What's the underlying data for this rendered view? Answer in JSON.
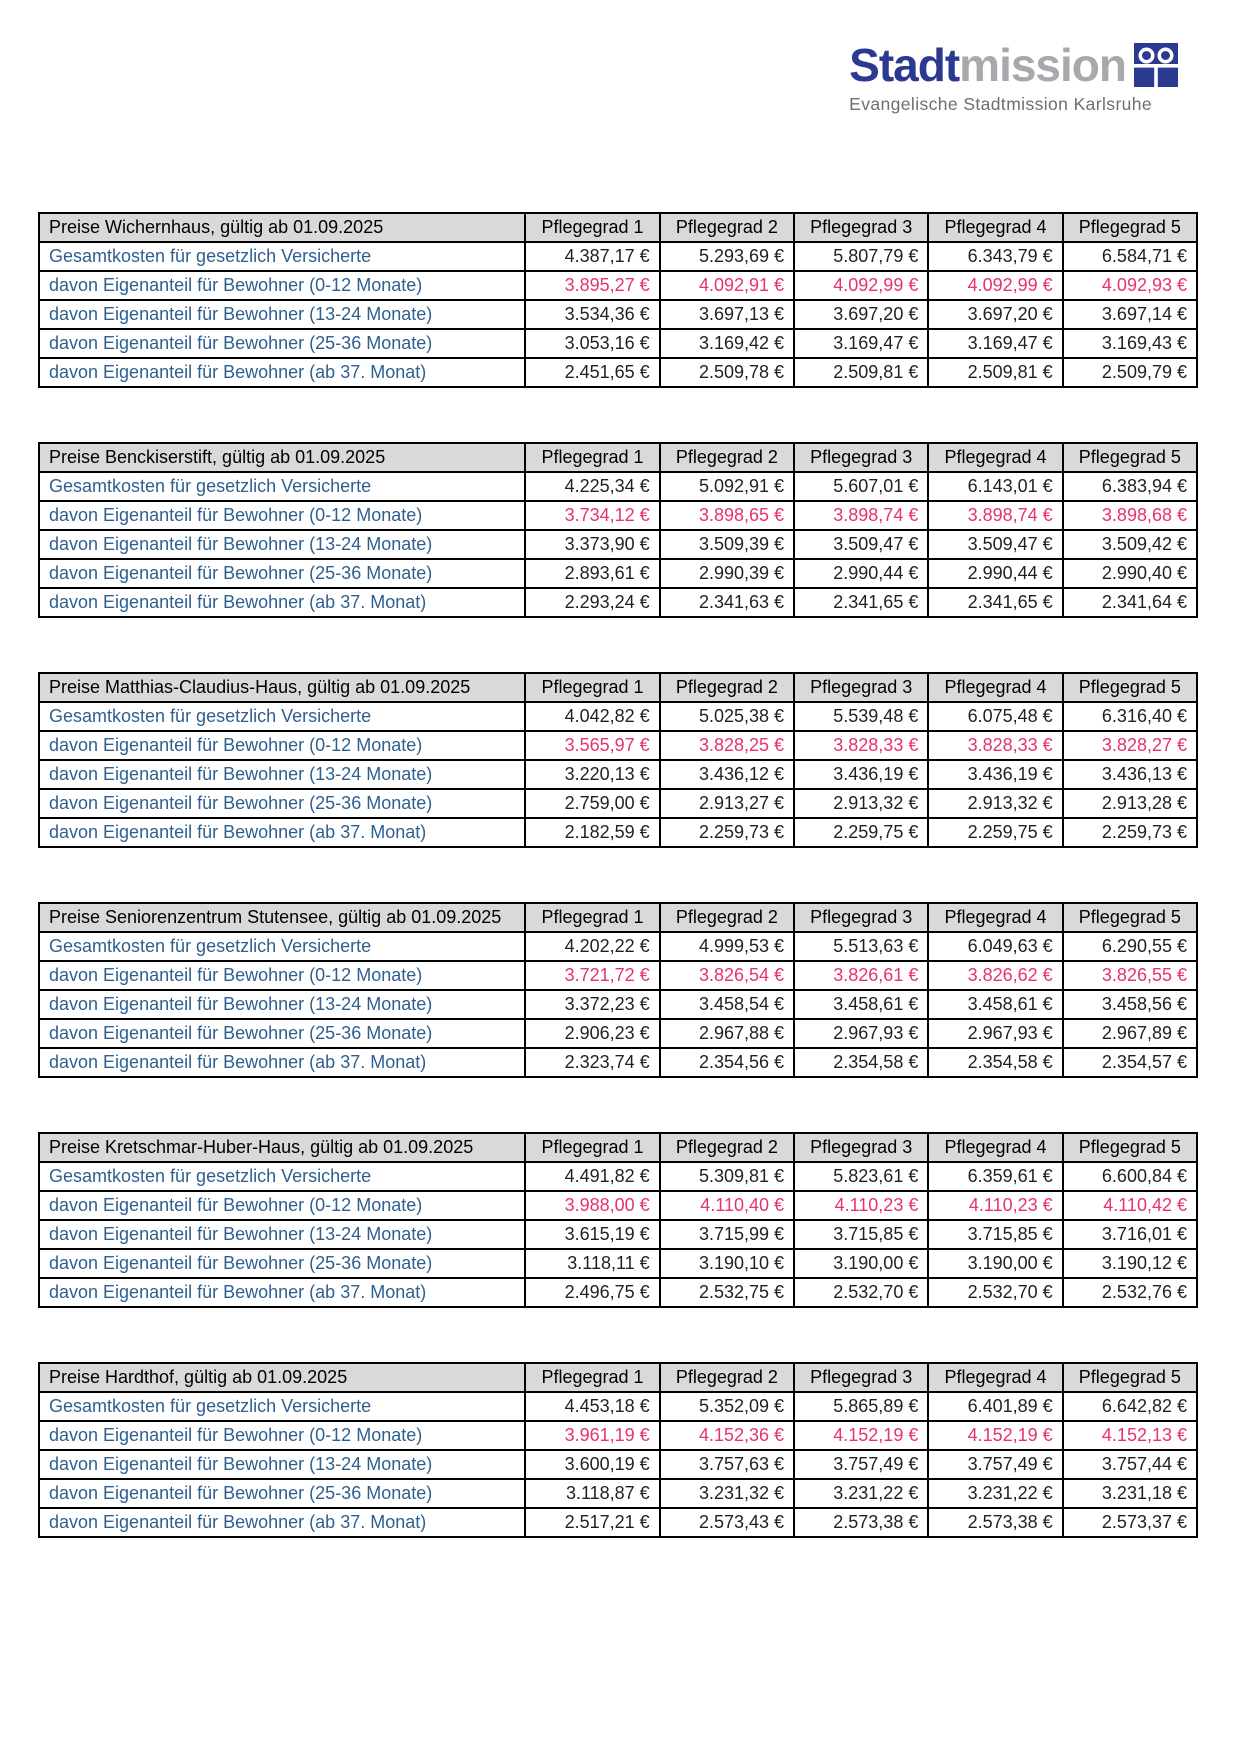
{
  "logo": {
    "brand_bold": "Stadt",
    "brand_light": "mission",
    "subtitle": "Evangelische Stadtmission Karlsruhe",
    "icon": "church-window-icon"
  },
  "colors": {
    "brand_blue": "#2b3990",
    "brand_gray": "#a7a9ac",
    "subtitle_gray": "#6d6e71",
    "header_bg": "#d9d9d9",
    "label_blue": "#2f5f8f",
    "value_black": "#231f20",
    "highlight_red": "#e63369",
    "border": "#000000"
  },
  "column_headers": [
    "Pflegegrad 1",
    "Pflegegrad 2",
    "Pflegegrad 3",
    "Pflegegrad 4",
    "Pflegegrad 5"
  ],
  "tables": [
    {
      "title": "Preise Wichernhaus, gültig ab 01.09.2025",
      "rows": [
        {
          "label": "Gesamtkosten für gesetzlich Versicherte",
          "highlight": false,
          "values": [
            "4.387,17 €",
            "5.293,69 €",
            "5.807,79 €",
            "6.343,79 €",
            "6.584,71 €"
          ]
        },
        {
          "label": "davon Eigenanteil für Bewohner (0-12 Monate)",
          "highlight": true,
          "values": [
            "3.895,27 €",
            "4.092,91 €",
            "4.092,99 €",
            "4.092,99 €",
            "4.092,93 €"
          ]
        },
        {
          "label": "davon Eigenanteil für Bewohner (13-24 Monate)",
          "highlight": false,
          "values": [
            "3.534,36 €",
            "3.697,13 €",
            "3.697,20 €",
            "3.697,20 €",
            "3.697,14 €"
          ]
        },
        {
          "label": "davon Eigenanteil für Bewohner (25-36 Monate)",
          "highlight": false,
          "values": [
            "3.053,16 €",
            "3.169,42 €",
            "3.169,47 €",
            "3.169,47 €",
            "3.169,43 €"
          ]
        },
        {
          "label": "davon Eigenanteil für Bewohner (ab 37. Monat)",
          "highlight": false,
          "values": [
            "2.451,65 €",
            "2.509,78 €",
            "2.509,81 €",
            "2.509,81 €",
            "2.509,79 €"
          ]
        }
      ]
    },
    {
      "title": "Preise Benckiserstift, gültig ab 01.09.2025",
      "rows": [
        {
          "label": "Gesamtkosten für gesetzlich Versicherte",
          "highlight": false,
          "values": [
            "4.225,34 €",
            "5.092,91 €",
            "5.607,01 €",
            "6.143,01 €",
            "6.383,94 €"
          ]
        },
        {
          "label": "davon Eigenanteil für Bewohner (0-12 Monate)",
          "highlight": true,
          "values": [
            "3.734,12 €",
            "3.898,65 €",
            "3.898,74 €",
            "3.898,74 €",
            "3.898,68 €"
          ]
        },
        {
          "label": "davon Eigenanteil für Bewohner (13-24 Monate)",
          "highlight": false,
          "values": [
            "3.373,90 €",
            "3.509,39 €",
            "3.509,47 €",
            "3.509,47 €",
            "3.509,42 €"
          ]
        },
        {
          "label": "davon Eigenanteil für Bewohner (25-36 Monate)",
          "highlight": false,
          "values": [
            "2.893,61 €",
            "2.990,39 €",
            "2.990,44 €",
            "2.990,44 €",
            "2.990,40 €"
          ]
        },
        {
          "label": "davon Eigenanteil für Bewohner (ab 37. Monat)",
          "highlight": false,
          "values": [
            "2.293,24 €",
            "2.341,63 €",
            "2.341,65 €",
            "2.341,65 €",
            "2.341,64 €"
          ]
        }
      ]
    },
    {
      "title": "Preise Matthias-Claudius-Haus, gültig ab 01.09.2025",
      "rows": [
        {
          "label": "Gesamtkosten für gesetzlich Versicherte",
          "highlight": false,
          "values": [
            "4.042,82 €",
            "5.025,38 €",
            "5.539,48 €",
            "6.075,48 €",
            "6.316,40 €"
          ]
        },
        {
          "label": "davon Eigenanteil für Bewohner (0-12 Monate)",
          "highlight": true,
          "values": [
            "3.565,97 €",
            "3.828,25 €",
            "3.828,33 €",
            "3.828,33 €",
            "3.828,27 €"
          ]
        },
        {
          "label": "davon Eigenanteil für Bewohner (13-24 Monate)",
          "highlight": false,
          "values": [
            "3.220,13 €",
            "3.436,12 €",
            "3.436,19 €",
            "3.436,19 €",
            "3.436,13 €"
          ]
        },
        {
          "label": "davon Eigenanteil für Bewohner (25-36 Monate)",
          "highlight": false,
          "values": [
            "2.759,00 €",
            "2.913,27 €",
            "2.913,32 €",
            "2.913,32 €",
            "2.913,28 €"
          ]
        },
        {
          "label": "davon Eigenanteil für Bewohner (ab 37. Monat)",
          "highlight": false,
          "values": [
            "2.182,59 €",
            "2.259,73 €",
            "2.259,75 €",
            "2.259,75 €",
            "2.259,73 €"
          ]
        }
      ]
    },
    {
      "title": "Preise Seniorenzentrum Stutensee, gültig ab 01.09.2025",
      "rows": [
        {
          "label": "Gesamtkosten für gesetzlich Versicherte",
          "highlight": false,
          "values": [
            "4.202,22 €",
            "4.999,53 €",
            "5.513,63 €",
            "6.049,63 €",
            "6.290,55 €"
          ]
        },
        {
          "label": "davon Eigenanteil für Bewohner (0-12 Monate)",
          "highlight": true,
          "values": [
            "3.721,72 €",
            "3.826,54 €",
            "3.826,61 €",
            "3.826,62 €",
            "3.826,55 €"
          ]
        },
        {
          "label": "davon Eigenanteil für Bewohner (13-24 Monate)",
          "highlight": false,
          "values": [
            "3.372,23 €",
            "3.458,54 €",
            "3.458,61 €",
            "3.458,61 €",
            "3.458,56 €"
          ]
        },
        {
          "label": "davon Eigenanteil für Bewohner (25-36 Monate)",
          "highlight": false,
          "values": [
            "2.906,23 €",
            "2.967,88 €",
            "2.967,93 €",
            "2.967,93 €",
            "2.967,89 €"
          ]
        },
        {
          "label": "davon Eigenanteil für Bewohner (ab 37. Monat)",
          "highlight": false,
          "values": [
            "2.323,74 €",
            "2.354,56 €",
            "2.354,58 €",
            "2.354,58 €",
            "2.354,57 €"
          ]
        }
      ]
    },
    {
      "title": "Preise Kretschmar-Huber-Haus, gültig ab 01.09.2025",
      "rows": [
        {
          "label": "Gesamtkosten für gesetzlich Versicherte",
          "highlight": false,
          "values": [
            "4.491,82 €",
            "5.309,81 €",
            "5.823,61 €",
            "6.359,61 €",
            "6.600,84 €"
          ]
        },
        {
          "label": "davon Eigenanteil für Bewohner (0-12 Monate)",
          "highlight": true,
          "values": [
            "3.988,00 €",
            "4.110,40 €",
            "4.110,23 €",
            "4.110,23 €",
            "4.110,42 €"
          ]
        },
        {
          "label": "davon Eigenanteil für Bewohner (13-24 Monate)",
          "highlight": false,
          "values": [
            "3.615,19 €",
            "3.715,99 €",
            "3.715,85 €",
            "3.715,85 €",
            "3.716,01 €"
          ]
        },
        {
          "label": "davon Eigenanteil für Bewohner (25-36 Monate)",
          "highlight": false,
          "values": [
            "3.118,11 €",
            "3.190,10 €",
            "3.190,00 €",
            "3.190,00 €",
            "3.190,12 €"
          ]
        },
        {
          "label": "davon Eigenanteil für Bewohner (ab 37. Monat)",
          "highlight": false,
          "values": [
            "2.496,75 €",
            "2.532,75 €",
            "2.532,70 €",
            "2.532,70 €",
            "2.532,76 €"
          ]
        }
      ]
    },
    {
      "title": "Preise Hardthof, gültig ab 01.09.2025",
      "rows": [
        {
          "label": "Gesamtkosten für gesetzlich Versicherte",
          "highlight": false,
          "values": [
            "4.453,18 €",
            "5.352,09 €",
            "5.865,89 €",
            "6.401,89 €",
            "6.642,82 €"
          ]
        },
        {
          "label": "davon Eigenanteil für Bewohner (0-12 Monate)",
          "highlight": true,
          "values": [
            "3.961,19 €",
            "4.152,36 €",
            "4.152,19 €",
            "4.152,19 €",
            "4.152,13 €"
          ]
        },
        {
          "label": "davon Eigenanteil für Bewohner (13-24 Monate)",
          "highlight": false,
          "values": [
            "3.600,19 €",
            "3.757,63 €",
            "3.757,49 €",
            "3.757,49 €",
            "3.757,44 €"
          ]
        },
        {
          "label": "davon Eigenanteil für Bewohner (25-36 Monate)",
          "highlight": false,
          "values": [
            "3.118,87 €",
            "3.231,32 €",
            "3.231,22 €",
            "3.231,22 €",
            "3.231,18 €"
          ]
        },
        {
          "label": "davon Eigenanteil für Bewohner (ab 37. Monat)",
          "highlight": false,
          "values": [
            "2.517,21 €",
            "2.573,43 €",
            "2.573,38 €",
            "2.573,38 €",
            "2.573,37 €"
          ]
        }
      ]
    }
  ]
}
